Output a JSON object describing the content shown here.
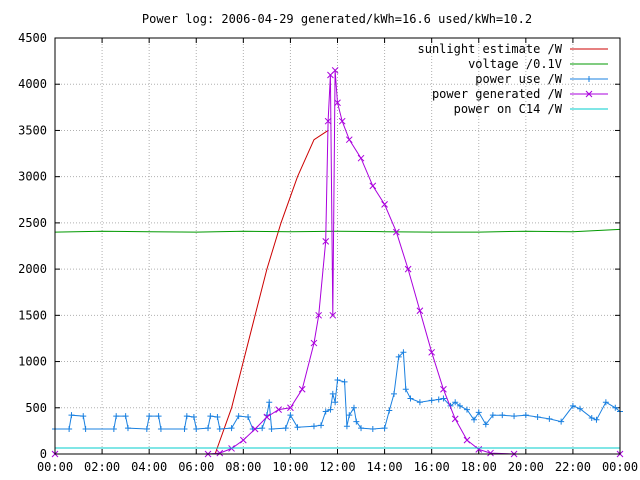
{
  "chart_data": {
    "type": "line",
    "title": "Power log: 2006-04-29 generated/kWh=16.6 used/kWh=10.2",
    "xlabel": "",
    "ylabel": "",
    "x_range_hours": [
      0,
      24
    ],
    "ylim": [
      0,
      4500
    ],
    "x_ticks": [
      "00:00",
      "02:00",
      "04:00",
      "06:00",
      "08:00",
      "10:00",
      "12:00",
      "14:00",
      "16:00",
      "18:00",
      "20:00",
      "22:00",
      "00:00"
    ],
    "y_ticks": [
      0,
      500,
      1000,
      1500,
      2000,
      2500,
      3000,
      3500,
      4000,
      4500
    ],
    "grid": true,
    "legend_position": "top-right",
    "series": [
      {
        "name": "sunlight estimate /W",
        "color": "#cc0000",
        "style": "line",
        "points": [
          [
            6.8,
            0
          ],
          [
            7.5,
            500
          ],
          [
            8.0,
            1000
          ],
          [
            8.5,
            1500
          ],
          [
            9.0,
            2000
          ],
          [
            9.6,
            2500
          ],
          [
            10.3,
            3000
          ],
          [
            11.0,
            3400
          ],
          [
            11.6,
            3500
          ]
        ]
      },
      {
        "name": "voltage /0.1V",
        "color": "#009900",
        "style": "line",
        "points": [
          [
            0,
            2400
          ],
          [
            2,
            2410
          ],
          [
            4,
            2405
          ],
          [
            6,
            2400
          ],
          [
            8,
            2410
          ],
          [
            10,
            2405
          ],
          [
            12,
            2410
          ],
          [
            14,
            2405
          ],
          [
            16,
            2400
          ],
          [
            18,
            2400
          ],
          [
            20,
            2410
          ],
          [
            22,
            2405
          ],
          [
            24,
            2430
          ]
        ]
      },
      {
        "name": "power use /W",
        "color": "#1a80e0",
        "style": "linespoints-plus",
        "points": [
          [
            0,
            270
          ],
          [
            0.6,
            270
          ],
          [
            0.7,
            420
          ],
          [
            1.2,
            410
          ],
          [
            1.3,
            270
          ],
          [
            2.5,
            270
          ],
          [
            2.6,
            410
          ],
          [
            3.0,
            410
          ],
          [
            3.1,
            280
          ],
          [
            3.9,
            270
          ],
          [
            4.0,
            410
          ],
          [
            4.4,
            410
          ],
          [
            4.5,
            270
          ],
          [
            5.5,
            270
          ],
          [
            5.6,
            410
          ],
          [
            5.9,
            400
          ],
          [
            6.0,
            270
          ],
          [
            6.5,
            280
          ],
          [
            6.6,
            410
          ],
          [
            6.9,
            400
          ],
          [
            7.0,
            270
          ],
          [
            7.5,
            280
          ],
          [
            7.8,
            410
          ],
          [
            8.2,
            400
          ],
          [
            8.4,
            270
          ],
          [
            8.8,
            280
          ],
          [
            9.0,
            420
          ],
          [
            9.1,
            560
          ],
          [
            9.2,
            270
          ],
          [
            9.8,
            280
          ],
          [
            10.0,
            420
          ],
          [
            10.3,
            290
          ],
          [
            11.0,
            300
          ],
          [
            11.3,
            310
          ],
          [
            11.5,
            460
          ],
          [
            11.7,
            480
          ],
          [
            11.8,
            650
          ],
          [
            11.9,
            560
          ],
          [
            12.0,
            800
          ],
          [
            12.3,
            780
          ],
          [
            12.4,
            300
          ],
          [
            12.5,
            420
          ],
          [
            12.7,
            500
          ],
          [
            12.8,
            350
          ],
          [
            13.0,
            280
          ],
          [
            13.5,
            270
          ],
          [
            14.0,
            280
          ],
          [
            14.2,
            470
          ],
          [
            14.4,
            650
          ],
          [
            14.6,
            1050
          ],
          [
            14.8,
            1100
          ],
          [
            14.9,
            700
          ],
          [
            15.1,
            600
          ],
          [
            15.5,
            560
          ],
          [
            16.0,
            580
          ],
          [
            16.3,
            590
          ],
          [
            16.5,
            600
          ],
          [
            16.8,
            520
          ],
          [
            17.0,
            560
          ],
          [
            17.2,
            520
          ],
          [
            17.5,
            480
          ],
          [
            17.8,
            370
          ],
          [
            18.0,
            450
          ],
          [
            18.3,
            320
          ],
          [
            18.6,
            420
          ],
          [
            19.0,
            420
          ],
          [
            19.5,
            410
          ],
          [
            20.0,
            420
          ],
          [
            20.5,
            400
          ],
          [
            21.0,
            380
          ],
          [
            21.5,
            350
          ],
          [
            22.0,
            520
          ],
          [
            22.3,
            490
          ],
          [
            22.8,
            390
          ],
          [
            23.0,
            370
          ],
          [
            23.4,
            560
          ],
          [
            23.8,
            500
          ],
          [
            24.0,
            460
          ]
        ]
      },
      {
        "name": "power generated /W",
        "color": "#aa00dd",
        "style": "linespoints-x",
        "points": [
          [
            0,
            0
          ],
          [
            6.5,
            0
          ],
          [
            7.0,
            10
          ],
          [
            7.5,
            60
          ],
          [
            8.0,
            150
          ],
          [
            8.5,
            270
          ],
          [
            9.0,
            400
          ],
          [
            9.5,
            480
          ],
          [
            10.0,
            500
          ],
          [
            10.5,
            700
          ],
          [
            11.0,
            1200
          ],
          [
            11.2,
            1500
          ],
          [
            11.5,
            2300
          ],
          [
            11.6,
            3600
          ],
          [
            11.7,
            4100
          ],
          [
            11.8,
            1500
          ],
          [
            11.9,
            4150
          ],
          [
            12.0,
            3800
          ],
          [
            12.2,
            3600
          ],
          [
            12.5,
            3400
          ],
          [
            13.0,
            3200
          ],
          [
            13.5,
            2900
          ],
          [
            14.0,
            2700
          ],
          [
            14.5,
            2400
          ],
          [
            15.0,
            2000
          ],
          [
            15.5,
            1550
          ],
          [
            16.0,
            1100
          ],
          [
            16.5,
            700
          ],
          [
            17.0,
            380
          ],
          [
            17.5,
            150
          ],
          [
            18.0,
            50
          ],
          [
            18.5,
            10
          ],
          [
            19.5,
            0
          ],
          [
            24.0,
            0
          ]
        ]
      },
      {
        "name": "power on C14 /W",
        "color": "#00cccc",
        "style": "line",
        "points": [
          [
            0,
            65
          ],
          [
            24,
            65
          ]
        ]
      }
    ]
  }
}
